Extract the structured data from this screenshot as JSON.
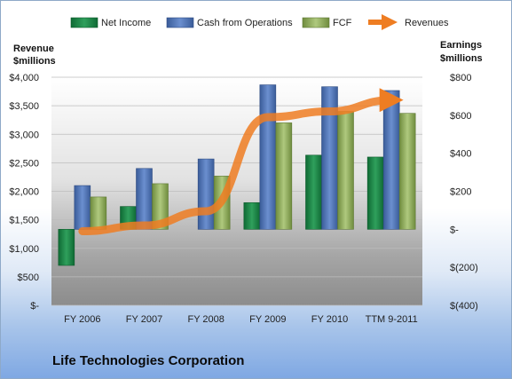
{
  "chart_data": {
    "type": "bar",
    "title": "Life Technologies Corporation",
    "categories": [
      "FY 2006",
      "FY 2007",
      "FY 2008",
      "FY 2009",
      "FY 2010",
      "TTM 9-2011"
    ],
    "series": [
      {
        "name": "Net Income",
        "axis": "right",
        "values": [
          -190,
          120,
          0,
          140,
          390,
          380
        ],
        "color": "#1e8a4c"
      },
      {
        "name": "Cash from Operations",
        "axis": "right",
        "values": [
          230,
          320,
          370,
          760,
          750,
          730
        ],
        "color": "#4f75b8"
      },
      {
        "name": "FCF",
        "axis": "right",
        "values": [
          170,
          240,
          280,
          560,
          620,
          610
        ],
        "color": "#93b062"
      },
      {
        "name": "Revenues",
        "axis": "left",
        "type": "line",
        "values": [
          1300,
          1400,
          1650,
          3300,
          3400,
          3600
        ],
        "color": "#ee7d22"
      }
    ],
    "left_axis": {
      "title_lines": [
        "Revenue",
        "$millions"
      ],
      "ylim": [
        0,
        4000
      ],
      "ticks": [
        0,
        500,
        1000,
        1500,
        2000,
        2500,
        3000,
        3500,
        4000
      ],
      "tick_labels": [
        "$-",
        "$500",
        "$1,000",
        "$1,500",
        "$2,000",
        "$2,500",
        "$3,000",
        "$3,500",
        "$4,000"
      ]
    },
    "right_axis": {
      "title_lines": [
        "Earnings",
        "$millions"
      ],
      "ylim": [
        -400,
        800
      ],
      "ticks": [
        -400,
        -200,
        0,
        200,
        400,
        600,
        800
      ],
      "tick_labels": [
        "$(400)",
        "$(200)",
        "$-",
        "$200",
        "$400",
        "$600",
        "$800"
      ]
    },
    "legend": {
      "position": "top",
      "items": [
        "Net Income",
        "Cash from Operations",
        "FCF",
        "Revenues"
      ]
    },
    "grid": true
  }
}
